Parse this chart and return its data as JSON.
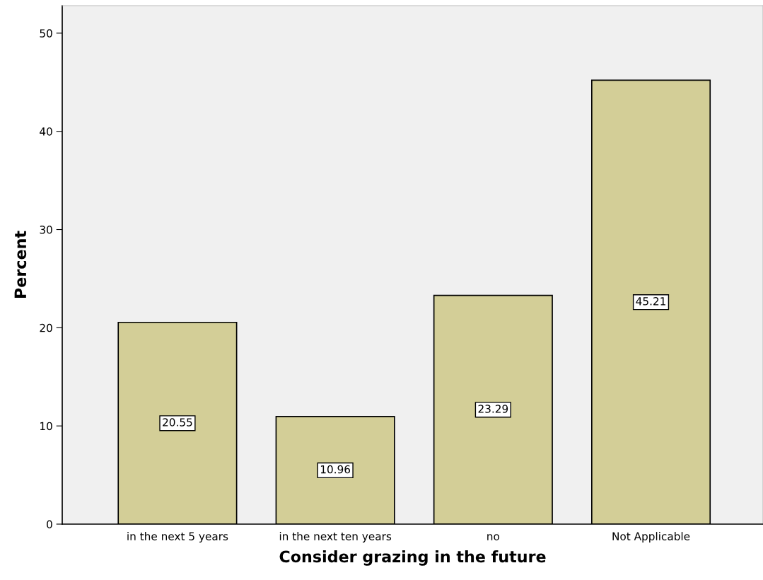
{
  "chart_data": {
    "type": "bar",
    "xlabel": "Consider grazing in the future",
    "ylabel": "Percent",
    "categories": [
      "in the next 5 years",
      "in the next ten years",
      "no",
      "Not Applicable"
    ],
    "values": [
      20.55,
      10.96,
      23.29,
      45.21
    ],
    "color": "#d3ce97",
    "ylim": [
      0,
      52.8
    ],
    "yticks": [
      0,
      10,
      20,
      30,
      40,
      50
    ],
    "data_labels": true,
    "grid": false
  }
}
